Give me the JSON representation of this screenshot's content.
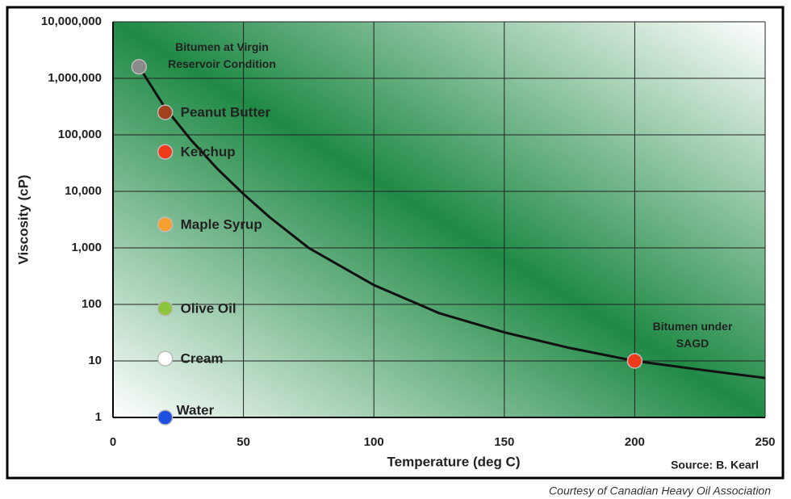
{
  "chart_data": {
    "type": "line",
    "x_label": "Temperature (deg C)",
    "y_label": "Viscosity (cP)",
    "source": "Source: B. Kearl",
    "xlim": [
      0,
      250
    ],
    "ylim": [
      1,
      10000000
    ],
    "log_y": true,
    "grid": true,
    "xticks": [
      0,
      50,
      100,
      150,
      200,
      250
    ],
    "yticks": [
      1,
      10,
      100,
      {
        "value": 1000,
        "label": "1,000"
      },
      {
        "value": 10000,
        "label": "10,000"
      },
      {
        "value": 100000,
        "label": "100,000"
      },
      {
        "value": 1000000,
        "label": "1,000,000"
      },
      {
        "value": 10000000,
        "label": "10,000,000"
      }
    ],
    "curve": {
      "color": "#111111",
      "x": [
        10,
        20,
        30,
        40,
        50,
        60,
        75,
        100,
        125,
        150,
        175,
        200,
        225,
        250
      ],
      "values": [
        1600000,
        300000,
        80000,
        25000,
        9000,
        3500,
        1000,
        220,
        70,
        32,
        17,
        10,
        7,
        5
      ]
    },
    "points": [
      {
        "label": "Bitumen at Virgin\nReservoir Condition",
        "x": 10,
        "y": 1600000,
        "color": "#8a8a8a"
      },
      {
        "label": "Peanut Butter",
        "x": 20,
        "y": 250000,
        "color": "#a0401c"
      },
      {
        "label": "Ketchup",
        "x": 20,
        "y": 50000,
        "color": "#ee3a1a"
      },
      {
        "label": "Maple Syrup",
        "x": 20,
        "y": 2600,
        "color": "#f7a030"
      },
      {
        "label": "Olive Oil",
        "x": 20,
        "y": 85,
        "color": "#8cc43c"
      },
      {
        "label": "Cream",
        "x": 20,
        "y": 11,
        "color": "#ffffff"
      },
      {
        "label": "Water",
        "x": 20,
        "y": 1,
        "color": "#1e4fe0"
      },
      {
        "label": "Bitumen under\nSAGD",
        "x": 200,
        "y": 10,
        "color": "#ee3a1a"
      }
    ]
  },
  "caption": "Courtesy of Canadian Heavy Oil Association"
}
